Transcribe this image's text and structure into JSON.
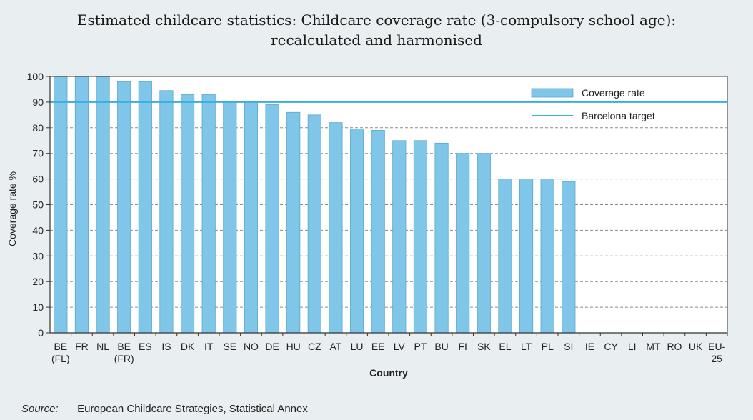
{
  "chart_data": {
    "type": "bar",
    "title_lines": [
      "Estimated childcare statistics: Childcare coverage rate (3-compulsory school age):",
      "recalculated and harmonised"
    ],
    "xlabel": "Country",
    "ylabel": "Coverage rate %",
    "ylim": [
      0,
      100
    ],
    "yticks": [
      0,
      10,
      20,
      30,
      40,
      50,
      60,
      70,
      80,
      90,
      100
    ],
    "grid": "dashed horizontal",
    "legend_position": "top-right",
    "categories": [
      [
        "BE",
        "(FL)"
      ],
      [
        "FR"
      ],
      [
        "NL"
      ],
      [
        "BE",
        "(FR)"
      ],
      [
        "ES"
      ],
      [
        "IS"
      ],
      [
        "DK"
      ],
      [
        "IT"
      ],
      [
        "SE"
      ],
      [
        "NO"
      ],
      [
        "DE"
      ],
      [
        "HU"
      ],
      [
        "CZ"
      ],
      [
        "AT"
      ],
      [
        "LU"
      ],
      [
        "EE"
      ],
      [
        "LV"
      ],
      [
        "PT"
      ],
      [
        "BU"
      ],
      [
        "FI"
      ],
      [
        "SK"
      ],
      [
        "EL"
      ],
      [
        "LT"
      ],
      [
        "PL"
      ],
      [
        "SI"
      ],
      [
        "IE"
      ],
      [
        "CY"
      ],
      [
        "LI"
      ],
      [
        "MT"
      ],
      [
        "RO"
      ],
      [
        "UK"
      ],
      [
        "EU-",
        "25"
      ]
    ],
    "series": [
      {
        "name": "Coverage rate",
        "color": "#7fc6e8",
        "values": [
          100,
          100,
          100,
          98,
          98,
          94.5,
          93,
          93,
          90,
          90,
          89,
          86,
          85,
          82,
          79.5,
          79,
          75,
          75,
          74,
          70,
          70,
          60,
          60,
          60,
          59,
          null,
          null,
          null,
          null,
          null,
          null,
          null
        ]
      }
    ],
    "reference_line": {
      "name": "Barcelona target",
      "value": 90,
      "color": "#3aaee0"
    }
  },
  "footer": {
    "source_label": "Source:",
    "source_text": "European Childcare Strategies, Statistical Annex"
  }
}
